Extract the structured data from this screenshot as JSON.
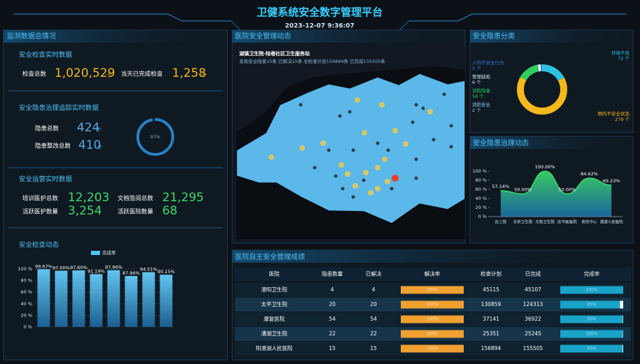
{
  "header": {
    "title": "卫健系统安全数字管理平台",
    "datetime": "2023-12-07 9:36:07"
  },
  "monitor": {
    "title": "监测数据总情况",
    "unit": "个",
    "inspection": {
      "title": "安全检查实时数据",
      "total_label": "检查总数",
      "total": "1,020,529",
      "today_label": "当天已完成检查",
      "today": "1,258"
    },
    "hazard": {
      "title": "安全隐患治理追踪实时数据",
      "total_label": "隐患总数",
      "total": 424,
      "fixed_label": "隐患整改总数",
      "fixed": 410,
      "rate": {
        "value": 97,
        "label": "97%"
      }
    },
    "operation": {
      "title": "安全运营实时数据",
      "trained_label": "培训医护总数",
      "trained": "12,203",
      "docs_label": "文档签阅总数",
      "docs": "21,295",
      "active_staff_label": "活跃医护数量",
      "active_staff": "3,254",
      "active_hosp_label": "活跃医院数量",
      "active_hosp": 68
    }
  },
  "inspection_chart": {
    "type": "bar",
    "title": "安全检查动态",
    "series": [
      {
        "name": "完成率",
        "color": "#4fc3f7",
        "values": [
          99.67,
          97.0,
          97.6,
          91.19,
          97.96,
          87.96,
          94.51,
          90.15
        ],
        "value_labels": [
          "99.67%",
          "97.00%",
          "97.60%",
          "91.19%",
          "97.96%",
          "87.96%",
          "94.51%",
          "90.15%"
        ]
      }
    ],
    "ylim": [
      0,
      100
    ],
    "yticks": [
      {
        "value": 0,
        "label": "0 %"
      },
      {
        "value": 20,
        "label": "20 %"
      },
      {
        "value": 40,
        "label": "40 %"
      },
      {
        "value": 60,
        "label": "60 %"
      },
      {
        "value": 80,
        "label": "80 %"
      },
      {
        "value": 100,
        "label": "100 %"
      }
    ],
    "grid": true
  },
  "map": {
    "title": "医院安全管理动态",
    "popup_title": "湖镇卫生院-陆巷社区卫生服务站",
    "popup_text": "发现安全隐患15条 已解决15条 总检查计划156894条 已完成155505条"
  },
  "hazard_chart": {
    "type": "pie",
    "title": "安全隐患分类",
    "unit": "个",
    "categories": [
      "环境不良",
      "物的不安全状态",
      "消防隐患",
      "消防安全",
      "管理缺陷",
      "人的不安全行为"
    ],
    "values": [
      72,
      279,
      58,
      2,
      6,
      5
    ],
    "colors": [
      "#2ec4e0",
      "#f5b91d",
      "#2fcf5d",
      "#8bd3f7",
      "#ffffff",
      "#3d7bd8"
    ]
  },
  "governance_chart": {
    "type": "area",
    "title": "安全隐患治理动态",
    "color": "#3ddc6a",
    "categories": [
      "区三院",
      "东桥卫生院",
      "元和卫生院",
      "区中医医院",
      "疾控中心",
      "漕湖人民医院"
    ],
    "values": [
      57.14,
      50.0,
      100.0,
      50.0,
      84.62,
      69.23
    ],
    "value_labels": [
      "57.14%",
      "50.00%",
      "100.00%",
      "50.00%",
      "84.62%",
      "69.23%"
    ],
    "ylim": [
      0,
      100
    ],
    "yticks": [
      {
        "value": 0,
        "label": "0 %"
      },
      {
        "value": 20,
        "label": "20 %"
      },
      {
        "value": 40,
        "label": "40 %"
      },
      {
        "value": 60,
        "label": "60 %"
      },
      {
        "value": 80,
        "label": "80 %"
      },
      {
        "value": 100,
        "label": "100 %"
      }
    ]
  },
  "table": {
    "title": "医院自主安全管理成绩",
    "columns": [
      "医院",
      "隐患数量",
      "已解决",
      "解决率",
      "检查计划",
      "已完成",
      "完成率"
    ],
    "rows": [
      {
        "hospital": "澄阳卫生院",
        "hazards": 4,
        "resolved": 4,
        "rate": {
          "value": 100,
          "label": "100%"
        },
        "plan": 45115,
        "done": 45107,
        "completion": {
          "value": 99.98,
          "label": "100%"
        }
      },
      {
        "hospital": "太平卫生院",
        "hazards": 20,
        "resolved": 20,
        "rate": {
          "value": 100,
          "label": "100%"
        },
        "plan": 130859,
        "done": 124313,
        "completion": {
          "value": 95.0,
          "label": "95%"
        }
      },
      {
        "hospital": "康复医院",
        "hazards": 54,
        "resolved": 54,
        "rate": {
          "value": 100,
          "label": "100%"
        },
        "plan": 37141,
        "done": 36922,
        "completion": {
          "value": 99.41,
          "label": "99%"
        }
      },
      {
        "hospital": "漕湖卫生院",
        "hazards": 22,
        "resolved": 22,
        "rate": {
          "value": 100,
          "label": "100%"
        },
        "plan": 25351,
        "done": 25245,
        "completion": {
          "value": 99.58,
          "label": "100%"
        }
      },
      {
        "hospital": "阳澄湖人民医院",
        "hazards": 15,
        "resolved": 15,
        "rate": {
          "value": 100,
          "label": "100%"
        },
        "plan": 156894,
        "done": 155505,
        "completion": {
          "value": 99.11,
          "label": "99%"
        }
      }
    ]
  }
}
